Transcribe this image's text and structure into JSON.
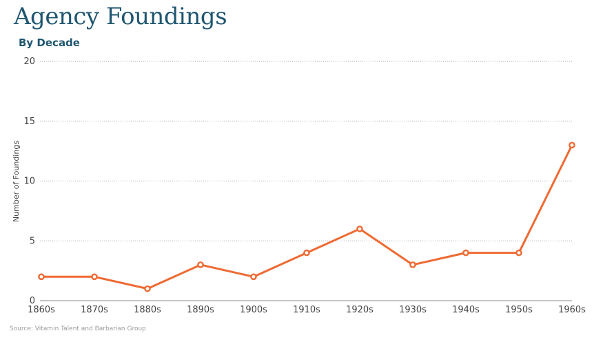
{
  "title": "Agency Foundings",
  "subtitle": "By Decade",
  "source": "Source: Vitamin Talent and Barbarian Group",
  "colors": {
    "title": "#1f5670",
    "line": "#ee6a33",
    "grid": "#aaaaaa",
    "axis": "#888888",
    "tick_text": "#444444",
    "source_text": "#9a9a9a"
  },
  "chart_data": {
    "type": "line",
    "title": "Agency Foundings",
    "subtitle": "By Decade",
    "xlabel": "",
    "ylabel": "Number of Foundings",
    "categories": [
      "1860s",
      "1870s",
      "1880s",
      "1890s",
      "1900s",
      "1910s",
      "1920s",
      "1930s",
      "1940s",
      "1950s",
      "1960s"
    ],
    "values": [
      2,
      2,
      1,
      3,
      2,
      4,
      6,
      3,
      4,
      4,
      13
    ],
    "ylim": [
      0,
      20
    ],
    "yticks": [
      0,
      5,
      10,
      15,
      20
    ],
    "grid": "horizontal-dotted",
    "legend": "none",
    "markers": "open-circle"
  }
}
